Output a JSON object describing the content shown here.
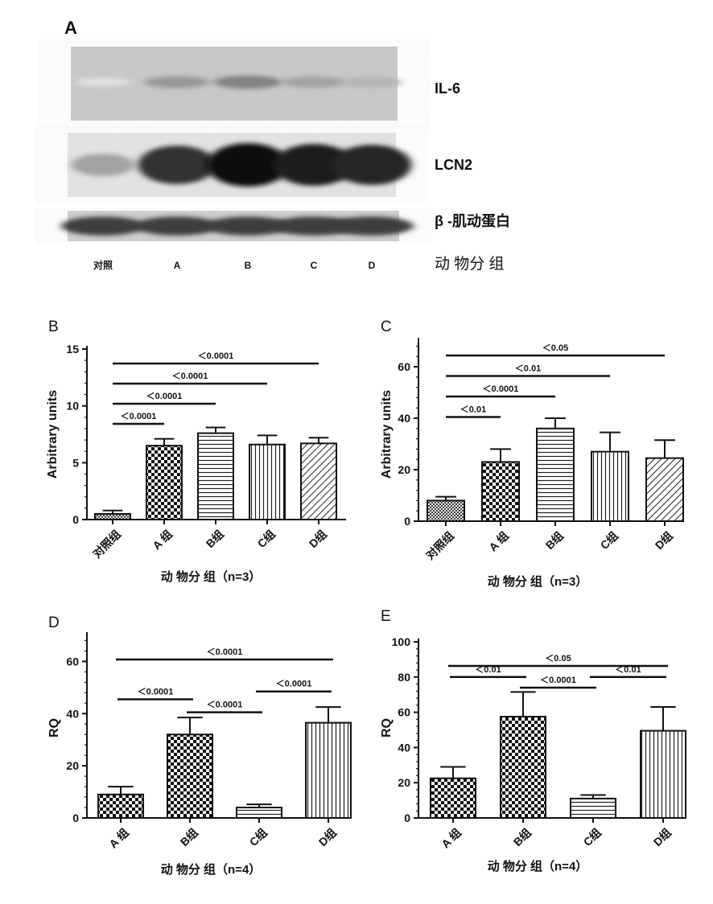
{
  "panel_a": {
    "letter": "A",
    "bands": [
      {
        "label": "IL-6",
        "intensities": [
          0.02,
          0.35,
          0.45,
          0.3,
          0.22
        ]
      },
      {
        "label": "LCN2",
        "intensities": [
          0.3,
          0.8,
          0.95,
          0.9,
          0.85
        ]
      },
      {
        "label": "β -肌动蛋白",
        "intensities": [
          0.75,
          0.75,
          0.75,
          0.75,
          0.75
        ]
      }
    ],
    "lanes": [
      "对照",
      "A",
      "B",
      "C",
      "D"
    ],
    "xlabel": "动 物分 组"
  },
  "chart_data": [
    {
      "panel": "B",
      "type": "bar",
      "categories": [
        "对照组",
        "A 组",
        "B组",
        "C组",
        "D组"
      ],
      "values": [
        0.5,
        6.5,
        7.6,
        6.6,
        6.7
      ],
      "errors": [
        0.3,
        0.6,
        0.5,
        0.8,
        0.5
      ],
      "patterns": [
        "crosshatch",
        "checker",
        "hlines",
        "vlines",
        "diagonal"
      ],
      "xlabel": "动 物分 组（n=3）",
      "ylabel": "Arbitrary units",
      "ylim": [
        0,
        15
      ],
      "yticks": [
        0,
        5,
        10,
        15
      ],
      "significance": [
        {
          "from": 0,
          "to": 1,
          "label": "＜0.0001"
        },
        {
          "from": 0,
          "to": 2,
          "label": "＜0.0001"
        },
        {
          "from": 0,
          "to": 3,
          "label": "＜0.0001"
        },
        {
          "from": 0,
          "to": 4,
          "label": "＜0.0001"
        }
      ]
    },
    {
      "panel": "C",
      "type": "bar",
      "categories": [
        "对照组",
        "A 组",
        "B组",
        "C组",
        "D组"
      ],
      "values": [
        8,
        23,
        36,
        27,
        24.5
      ],
      "errors": [
        1.5,
        5,
        4,
        7.5,
        7
      ],
      "patterns": [
        "crosshatch",
        "checker",
        "hlines",
        "vlines",
        "diagonal"
      ],
      "xlabel": "动 物分 组（n=3）",
      "ylabel": "Arbitrary units",
      "ylim": [
        0,
        70
      ],
      "yticks": [
        0,
        20,
        40,
        60
      ],
      "significance": [
        {
          "from": 0,
          "to": 1,
          "label": "＜0.01"
        },
        {
          "from": 0,
          "to": 2,
          "label": "＜0.0001"
        },
        {
          "from": 0,
          "to": 3,
          "label": "＜0.01"
        },
        {
          "from": 0,
          "to": 4,
          "label": "＜0.05"
        }
      ]
    },
    {
      "panel": "D",
      "type": "bar",
      "categories": [
        "A 组",
        "B组",
        "C组",
        "D组"
      ],
      "values": [
        9,
        32,
        4,
        36.5
      ],
      "errors": [
        3,
        6.5,
        1.2,
        6
      ],
      "patterns": [
        "checker",
        "checker",
        "hlines",
        "vlines"
      ],
      "xlabel": "动 物分 组（n=4）",
      "ylabel": "RQ",
      "ylim": [
        0,
        70
      ],
      "yticks": [
        0,
        20,
        40,
        60
      ],
      "significance": [
        {
          "from": 0,
          "to": 1,
          "label": "＜0.0001"
        },
        {
          "from": 1,
          "to": 2,
          "label": "＜0.0001"
        },
        {
          "from": 2,
          "to": 3,
          "label": "＜0.0001"
        },
        {
          "from": 0,
          "to": 3,
          "label": "＜0.0001"
        }
      ]
    },
    {
      "panel": "E",
      "type": "bar",
      "categories": [
        "A 组",
        "B组",
        "C组",
        "D组"
      ],
      "values": [
        22.5,
        57.5,
        11,
        49.5
      ],
      "errors": [
        6.5,
        14,
        2,
        13.5
      ],
      "patterns": [
        "checker",
        "checker",
        "hlines",
        "vlines"
      ],
      "xlabel": "动 物分 组（n=4）",
      "ylabel": "RQ",
      "ylim": [
        0,
        100
      ],
      "yticks": [
        0,
        20,
        40,
        60,
        80,
        100
      ],
      "significance": [
        {
          "from": 0,
          "to": 1,
          "label": "＜0.01"
        },
        {
          "from": 1,
          "to": 2,
          "label": "＜0.0001"
        },
        {
          "from": 2,
          "to": 3,
          "label": "＜0.01"
        },
        {
          "from": 0,
          "to": 3,
          "label": "＜0.05"
        }
      ]
    }
  ]
}
